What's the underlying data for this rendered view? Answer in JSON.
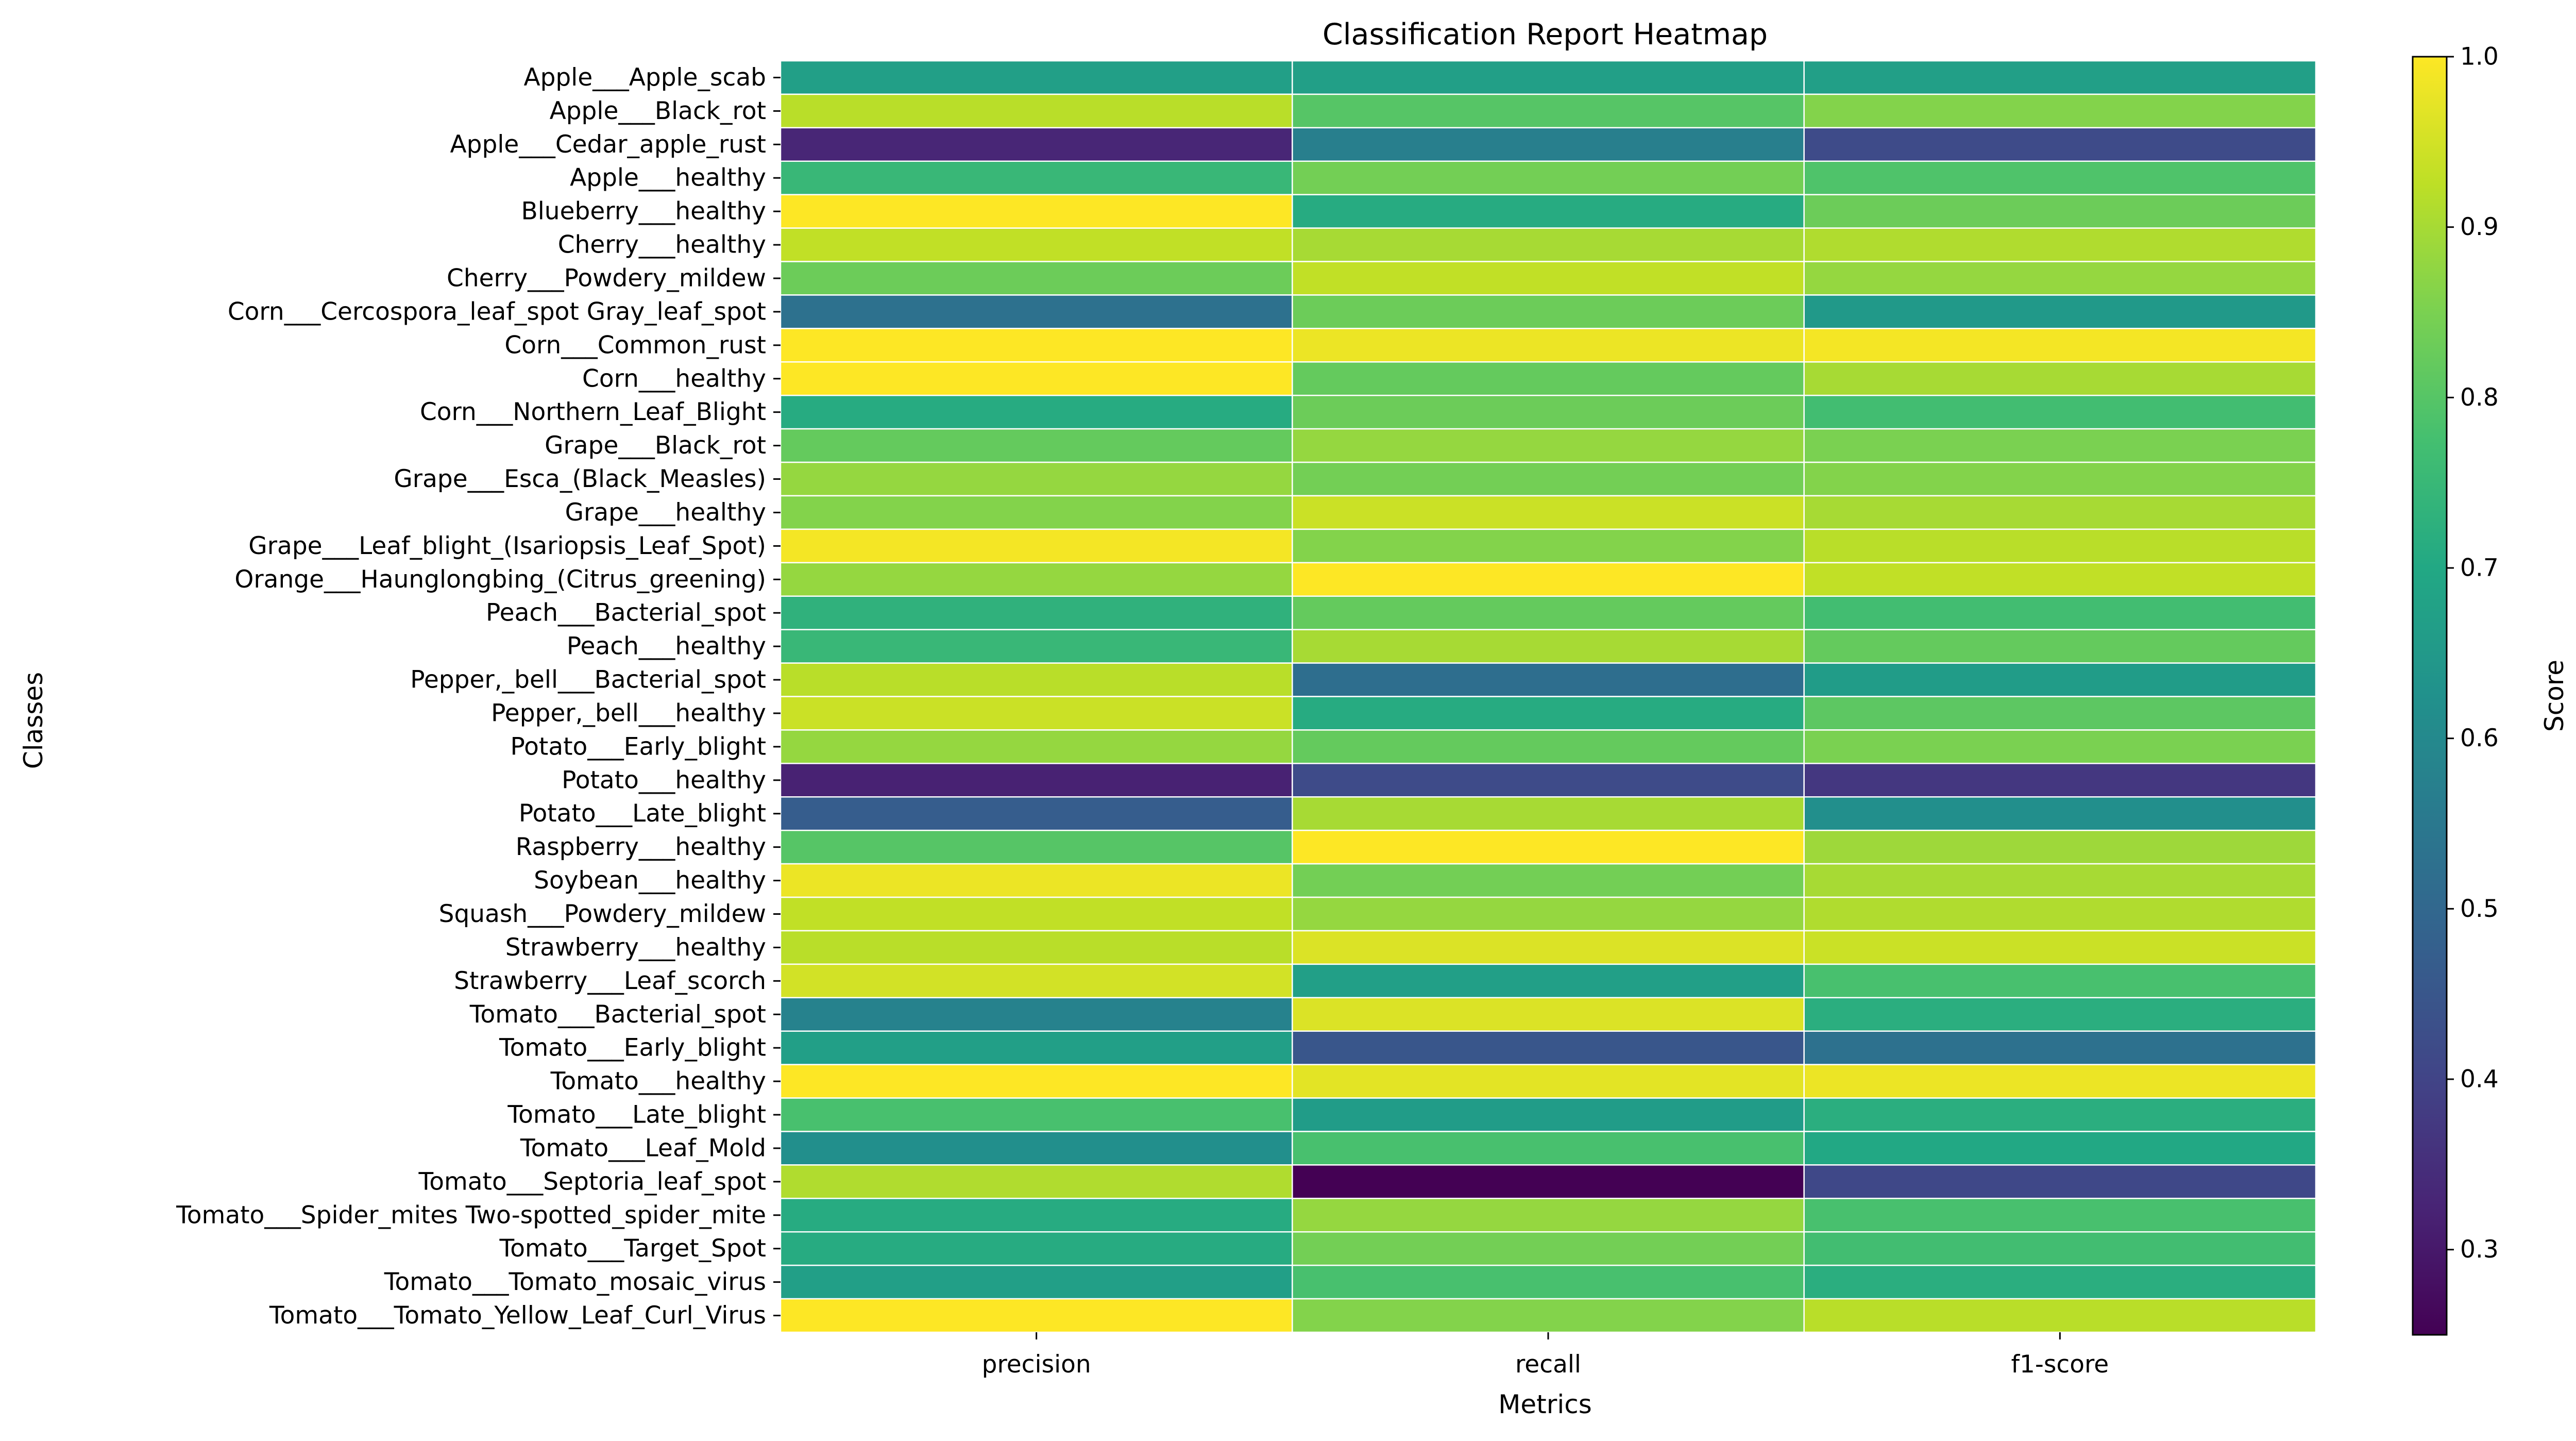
{
  "chart_data": {
    "type": "heatmap",
    "title": "Classification Report Heatmap",
    "xlabel": "Metrics",
    "ylabel": "Classes",
    "columns": [
      "precision",
      "recall",
      "f1-score"
    ],
    "rows": [
      "Apple___Apple_scab",
      "Apple___Black_rot",
      "Apple___Cedar_apple_rust",
      "Apple___healthy",
      "Blueberry___healthy",
      "Cherry___healthy",
      "Cherry___Powdery_mildew",
      "Corn___Cercospora_leaf_spot Gray_leaf_spot",
      "Corn___Common_rust",
      "Corn___healthy",
      "Corn___Northern_Leaf_Blight",
      "Grape___Black_rot",
      "Grape___Esca_(Black_Measles)",
      "Grape___healthy",
      "Grape___Leaf_blight_(Isariopsis_Leaf_Spot)",
      "Orange___Haunglongbing_(Citrus_greening)",
      "Peach___Bacterial_spot",
      "Peach___healthy",
      "Pepper,_bell___Bacterial_spot",
      "Pepper,_bell___healthy",
      "Potato___Early_blight",
      "Potato___healthy",
      "Potato___Late_blight",
      "Raspberry___healthy",
      "Soybean___healthy",
      "Squash___Powdery_mildew",
      "Strawberry___healthy",
      "Strawberry___Leaf_scorch",
      "Tomato___Bacterial_spot",
      "Tomato___Early_blight",
      "Tomato___healthy",
      "Tomato___Late_blight",
      "Tomato___Leaf_Mold",
      "Tomato___Septoria_leaf_spot",
      "Tomato___Spider_mites Two-spotted_spider_mite",
      "Tomato___Target_Spot",
      "Tomato___Tomato_mosaic_virus",
      "Tomato___Tomato_Yellow_Leaf_Curl_Virus"
    ],
    "values": [
      [
        0.67,
        0.67,
        0.67
      ],
      [
        0.92,
        0.8,
        0.86
      ],
      [
        0.33,
        0.57,
        0.42
      ],
      [
        0.75,
        0.84,
        0.79
      ],
      [
        1.0,
        0.71,
        0.83
      ],
      [
        0.93,
        0.9,
        0.91
      ],
      [
        0.83,
        0.93,
        0.88
      ],
      [
        0.53,
        0.83,
        0.65
      ],
      [
        1.0,
        0.98,
        0.99
      ],
      [
        1.0,
        0.82,
        0.9
      ],
      [
        0.71,
        0.83,
        0.77
      ],
      [
        0.82,
        0.88,
        0.85
      ],
      [
        0.88,
        0.84,
        0.86
      ],
      [
        0.86,
        0.94,
        0.9
      ],
      [
        0.99,
        0.86,
        0.92
      ],
      [
        0.88,
        1.0,
        0.93
      ],
      [
        0.73,
        0.82,
        0.77
      ],
      [
        0.75,
        0.9,
        0.82
      ],
      [
        0.92,
        0.52,
        0.66
      ],
      [
        0.94,
        0.71,
        0.81
      ],
      [
        0.88,
        0.82,
        0.85
      ],
      [
        0.32,
        0.42,
        0.37
      ],
      [
        0.47,
        0.9,
        0.62
      ],
      [
        0.8,
        1.0,
        0.89
      ],
      [
        0.98,
        0.84,
        0.9
      ],
      [
        0.93,
        0.88,
        0.91
      ],
      [
        0.92,
        0.96,
        0.94
      ],
      [
        0.95,
        0.67,
        0.78
      ],
      [
        0.58,
        0.96,
        0.72
      ],
      [
        0.67,
        0.45,
        0.53
      ],
      [
        1.0,
        0.97,
        0.98
      ],
      [
        0.78,
        0.66,
        0.72
      ],
      [
        0.62,
        0.78,
        0.7
      ],
      [
        0.91,
        0.25,
        0.41
      ],
      [
        0.71,
        0.88,
        0.78
      ],
      [
        0.71,
        0.84,
        0.77
      ],
      [
        0.67,
        0.78,
        0.72
      ],
      [
        1.0,
        0.86,
        0.92
      ]
    ],
    "colorscale": "viridis",
    "vmin": 0.25,
    "vmax": 1.0,
    "colorbar_label": "Score",
    "colorbar_ticks": [
      "0.3",
      "0.4",
      "0.5",
      "0.6",
      "0.7",
      "0.8",
      "0.9",
      "1.0"
    ],
    "colorbar_tick_values": [
      0.3,
      0.4,
      0.5,
      0.6,
      0.7,
      0.8,
      0.9,
      1.0
    ]
  }
}
